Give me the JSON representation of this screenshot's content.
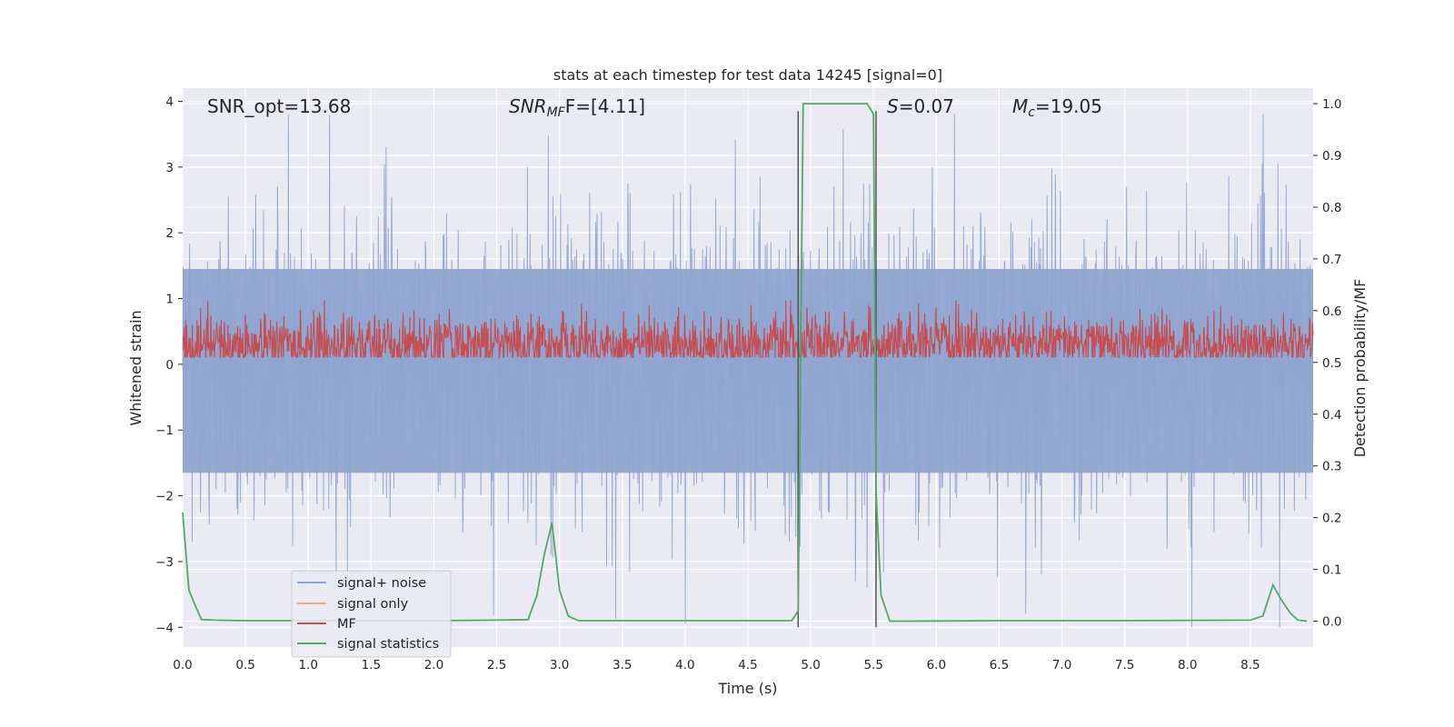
{
  "chart_data": {
    "type": "line",
    "title": "stats at each timestep for test data 14245 [signal=0]",
    "xlabel": "Time (s)",
    "ylabel_left": "Whitened strain",
    "ylabel_right": "Detection probability/MF",
    "xlim": [
      0,
      9.0
    ],
    "ylim_left": [
      -4.3,
      4.2
    ],
    "ylim_right": [
      -0.05,
      1.03
    ],
    "x_ticks": [
      "0.0",
      "0.5",
      "1.0",
      "1.5",
      "2.0",
      "2.5",
      "3.0",
      "3.5",
      "4.0",
      "4.5",
      "5.0",
      "5.5",
      "6.0",
      "6.5",
      "7.0",
      "7.5",
      "8.0",
      "8.5"
    ],
    "y_left_ticks": [
      "4",
      "3",
      "2",
      "1",
      "0",
      "−1",
      "−2",
      "−3",
      "−4"
    ],
    "y_right_ticks": [
      "1.0",
      "0.9",
      "0.8",
      "0.7",
      "0.6",
      "0.5",
      "0.4",
      "0.3",
      "0.2",
      "0.1",
      "0.0"
    ],
    "grid": true,
    "legend_placement": "lower-left",
    "annotations": {
      "snr_opt": "SNR_opt=13.68",
      "snr_mf_base": "SNR",
      "snr_mf_sub": "MF",
      "snr_mf_val": "F=[4.11]",
      "s_base": "S",
      "s_val": "=0.07",
      "mc_base": "M",
      "mc_sub": "c",
      "mc_val": "=19.05"
    },
    "vertical_lines_x": [
      4.9,
      5.52
    ],
    "series": [
      {
        "name": "signal+ noise",
        "color": "#8fa4cf",
        "description_range": [
          -4.0,
          3.8
        ],
        "note_values": "dense noisy strain samples spanning roughly -4 to 3.8"
      },
      {
        "name": "signal only",
        "color": "#f0a88a",
        "values": []
      },
      {
        "name": "MF",
        "color": "#c44e52",
        "note_values": "dense matched-filter trace around 0.2-0.6 (right axis)"
      },
      {
        "name": "signal statistics",
        "color": "#55a868",
        "x": [
          0.0,
          0.05,
          0.1,
          0.15,
          0.25,
          0.5,
          1.0,
          1.5,
          2.0,
          2.5,
          2.75,
          2.82,
          2.88,
          2.94,
          3.0,
          3.07,
          3.15,
          3.5,
          4.0,
          4.5,
          4.85,
          4.9,
          4.94,
          5.0,
          5.1,
          5.3,
          5.45,
          5.5,
          5.52,
          5.56,
          5.63,
          5.8,
          6.5,
          7.5,
          8.5,
          8.6,
          8.68,
          8.75,
          8.82,
          8.88,
          8.95
        ],
        "values": [
          0.21,
          0.06,
          0.03,
          0.003,
          0.002,
          0.001,
          0.001,
          0.001,
          0.001,
          0.002,
          0.003,
          0.05,
          0.13,
          0.19,
          0.06,
          0.01,
          0.001,
          0.001,
          0.001,
          0.001,
          0.001,
          0.02,
          1.0,
          1.0,
          1.0,
          1.0,
          1.0,
          0.98,
          0.25,
          0.05,
          0.0,
          0.0,
          0.001,
          0.001,
          0.002,
          0.01,
          0.07,
          0.04,
          0.015,
          0.002,
          0.0
        ]
      }
    ]
  },
  "legend": {
    "items": [
      {
        "label": "signal+ noise",
        "color": "#8fa4cf"
      },
      {
        "label": "signal only",
        "color": "#f0a88a"
      },
      {
        "label": "MF",
        "color": "#c44e52"
      },
      {
        "label": "signal statistics",
        "color": "#55a868"
      }
    ]
  },
  "colors": {
    "plot_background": "#eaeaf2",
    "grid": "#ffffff",
    "text": "#262626"
  }
}
